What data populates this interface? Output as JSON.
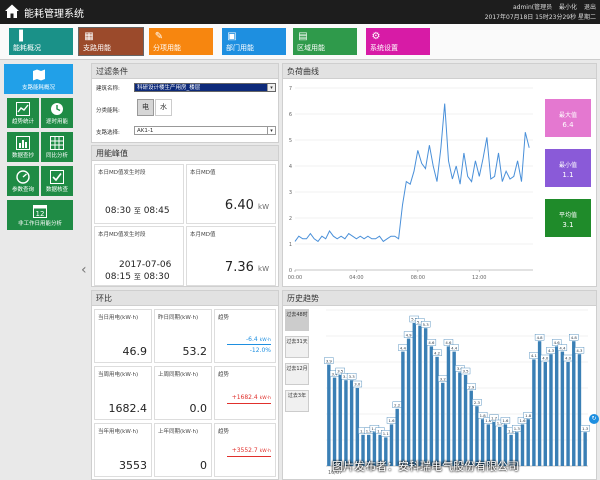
{
  "app": {
    "title": "能耗管理系统"
  },
  "top_right": {
    "user": "admin(管理员",
    "minimize": "最小化",
    "logout": "退出",
    "datetime": "2017年07月18日 15时23分29秒 星期二"
  },
  "nav": [
    {
      "label": "能耗概况",
      "color": "#1a9188",
      "icon": "stats-icon"
    },
    {
      "label": "支路用能",
      "color": "#9b4a2b",
      "icon": "branch-icon"
    },
    {
      "label": "分项用能",
      "color": "#f7860f",
      "icon": "item-icon"
    },
    {
      "label": "部门用能",
      "color": "#1e8fe0",
      "icon": "dept-icon"
    },
    {
      "label": "区域用能",
      "color": "#2f9a4b",
      "icon": "region-icon"
    },
    {
      "label": "系统设置",
      "color": "#d71ba6",
      "icon": "gear-icon"
    }
  ],
  "sidebar": [
    {
      "label": "支路能耗概况"
    },
    {
      "label": "趋势统计"
    },
    {
      "label": "逐时用能"
    },
    {
      "label": "数据查抄"
    },
    {
      "label": "同比分析"
    },
    {
      "label": "参数查询"
    },
    {
      "label": "数据核查"
    },
    {
      "label": "非工作日用能分析"
    }
  ],
  "filter": {
    "title": "过滤条件",
    "building_label": "建筑名称:",
    "building_value": "科研设计楼生产用房_楼层",
    "category_label": "分类能耗:",
    "btn_power": "电",
    "btn_water": "水",
    "branch_label": "支路选择:",
    "branch_value": "AK1-1"
  },
  "peak": {
    "title": "用能峰值",
    "today_time_label": "本日MD值发生时段",
    "today_from": "08:30",
    "to_word": "至",
    "today_to": "08:45",
    "today_md_label": "本日MD值",
    "today_md_value": "6.40",
    "unit_kw": "kW",
    "month_time_label": "本月MD值发生时段",
    "month_date": "2017-07-06",
    "month_from": "08:15",
    "month_to": "08:30",
    "month_md_label": "本月MD值",
    "month_md_value": "7.36"
  },
  "huanbi": {
    "title": "环比",
    "trend_label": "趋势",
    "rows": [
      {
        "cur_label": "当日用电(kW·h)",
        "cur": "46.9",
        "prev_label": "昨日同期(kW·h)",
        "prev": "53.2",
        "delta": "-6.4",
        "delta_unit": "kW·h",
        "pct": "-12.0%",
        "color": "#1e8fe0"
      },
      {
        "cur_label": "当周用电(kW·h)",
        "cur": "1682.4",
        "prev_label": "上周同期(kW·h)",
        "prev": "0.0",
        "delta": "+1682.4",
        "delta_unit": "kW·h",
        "pct": "",
        "color": "#e0302c"
      },
      {
        "cur_label": "当年用电(kW·h)",
        "cur": "3553",
        "prev_label": "上年同期(kW·h)",
        "prev": "0",
        "delta": "+3552.7",
        "delta_unit": "kW·h",
        "pct": "",
        "color": "#e0302c"
      }
    ]
  },
  "load": {
    "title": "负荷曲线",
    "max_label": "最大值",
    "max": "6.4",
    "max_color": "#e478d0",
    "min_label": "最小值",
    "min": "1.1",
    "min_color": "#8a5ad8",
    "avg_label": "平均值",
    "avg": "3.1",
    "avg_color": "#1f8b2a"
  },
  "history": {
    "title": "历史趋势",
    "buttons": [
      "过去48时",
      "过去31天",
      "过去12月",
      "过去3年"
    ]
  },
  "chart_data": [
    {
      "type": "line",
      "title": "",
      "xlabel": "",
      "ylabel": "",
      "x_ticks": [
        "00:00",
        "04:00",
        "08:00",
        "12:00"
      ],
      "y_ticks": [
        0,
        1,
        2,
        3,
        4,
        5,
        6,
        7
      ],
      "ylim": [
        0,
        7
      ],
      "xlim": [
        0,
        15.5
      ],
      "color": "#4a90d9",
      "x": [
        0,
        0.25,
        0.5,
        0.75,
        1,
        1.25,
        1.5,
        1.75,
        2,
        2.25,
        2.5,
        2.75,
        3,
        3.25,
        3.5,
        3.75,
        4,
        4.25,
        4.5,
        4.75,
        5,
        5.25,
        5.5,
        5.75,
        6,
        6.25,
        6.5,
        6.75,
        7,
        7.25,
        7.5,
        7.75,
        8,
        8.25,
        8.5,
        8.75,
        9,
        9.25,
        9.5,
        9.75,
        10,
        10.25,
        10.5,
        10.75,
        11,
        11.25,
        11.5,
        11.75,
        12,
        12.25,
        12.5,
        12.75,
        13,
        13.25,
        13.5,
        13.75,
        14,
        14.25,
        14.5,
        14.75,
        15,
        15.25
      ],
      "values": [
        1.1,
        1.3,
        1.2,
        1.2,
        1.4,
        1.2,
        1.1,
        1.3,
        1.2,
        1.5,
        1.3,
        1.2,
        1.3,
        1.2,
        1.4,
        1.3,
        1.2,
        1.3,
        1.2,
        1.3,
        1.2,
        1.2,
        1.3,
        1.1,
        1.2,
        1.3,
        1.3,
        1.2,
        2.5,
        3.4,
        3.3,
        3.8,
        4.6,
        4.1,
        3.9,
        4.8,
        4.0,
        3.4,
        4.7,
        6.4,
        4.2,
        3.5,
        4.0,
        3.3,
        4.5,
        3.6,
        3.4,
        4.2,
        3.6,
        4.3,
        5.1,
        3.5,
        3.6,
        4.5,
        3.4,
        3.8,
        3.5,
        3.6,
        4.2,
        3.4,
        5.3,
        4.7
      ]
    },
    {
      "type": "bar",
      "title": "",
      "xlabel": "",
      "ylabel": "",
      "ylim": [
        0,
        6
      ],
      "color": "#3a7fb5",
      "x_first_label": "16/07",
      "values": [
        3.9,
        3.4,
        3.5,
        3.3,
        3.3,
        3.0,
        1.2,
        1.2,
        1.3,
        1.2,
        1.1,
        1.6,
        2.2,
        4.4,
        4.9,
        5.5,
        5.4,
        5.3,
        4.6,
        4.2,
        3.2,
        4.6,
        4.4,
        3.6,
        3.5,
        2.9,
        2.3,
        1.8,
        1.6,
        1.7,
        1.5,
        1.6,
        1.2,
        1.3,
        1.6,
        1.8,
        4.1,
        4.8,
        4.0,
        4.3,
        4.6,
        4.4,
        4.0,
        4.8,
        4.3,
        1.3
      ]
    }
  ],
  "watermark": "图片发布者：安科瑞电气股份有限公司"
}
